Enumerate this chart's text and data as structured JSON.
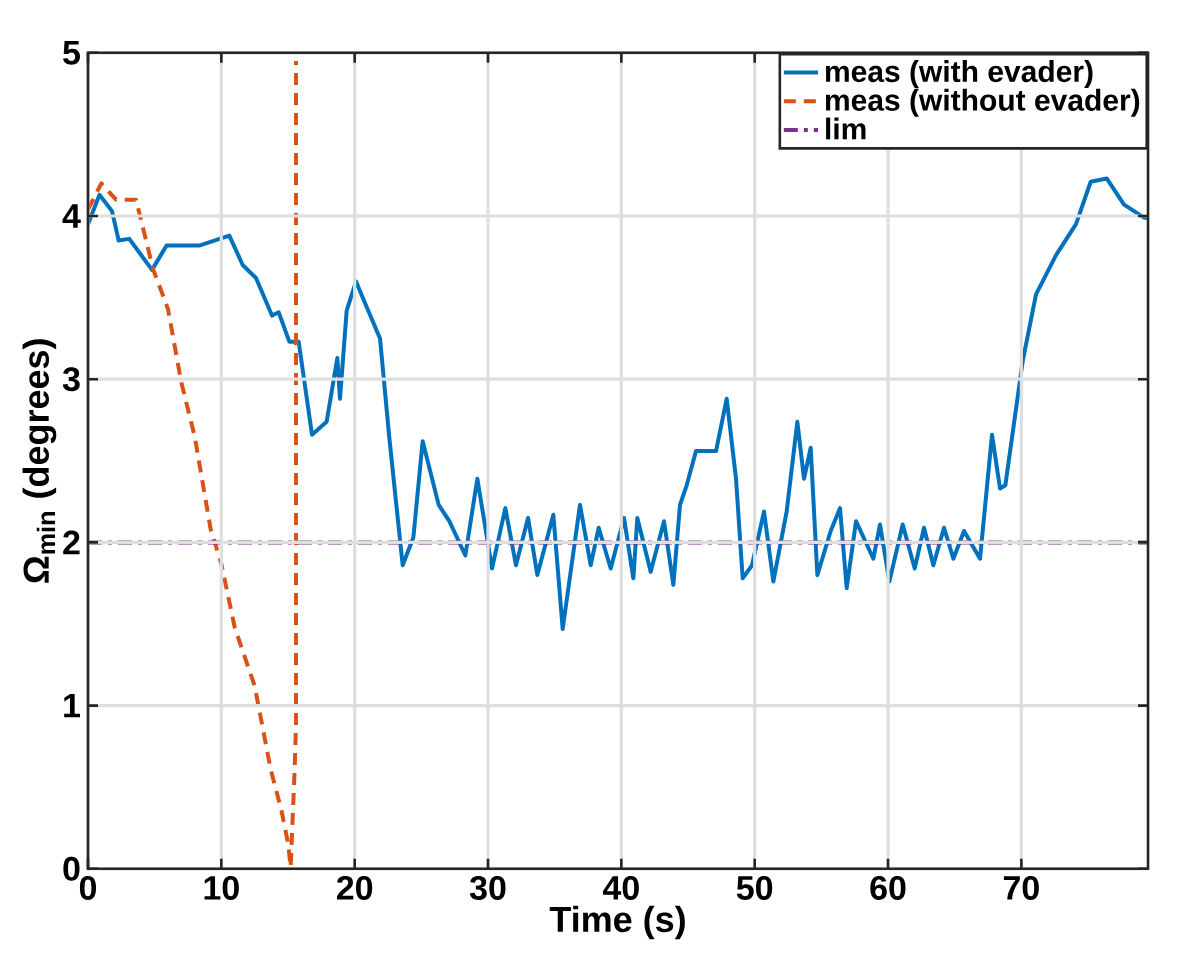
{
  "chart_data": {
    "type": "line",
    "xlabel": "Time (s)",
    "ylabel": "Ω$_{min}$ (degrees)",
    "xlim": [
      0,
      79.5
    ],
    "ylim": [
      0,
      5
    ],
    "xticks": [
      0,
      10,
      20,
      30,
      40,
      50,
      60,
      70
    ],
    "yticks": [
      0,
      1,
      2,
      3,
      4,
      5
    ],
    "grid": true,
    "legend": "top right",
    "series": [
      {
        "name": "meas (with evader)",
        "color": "#0072bd",
        "line_style": "solid",
        "x": [
          0,
          0.86,
          1.8,
          2.3,
          3.1,
          4.8,
          5.9,
          8.4,
          10.6,
          11.6,
          12.6,
          13.8,
          14.3,
          15.1,
          15.8,
          16.8,
          17.9,
          18.7,
          18.9,
          19.4,
          20.1,
          20.6,
          21.9,
          22.6,
          23.6,
          24.4,
          25.1,
          26.3,
          27.1,
          28.3,
          29.2,
          30.3,
          31.3,
          32.1,
          33.0,
          33.7,
          34.9,
          35.6,
          36.9,
          37.7,
          38.3,
          39.2,
          40.2,
          40.9,
          41.2,
          42.2,
          43.2,
          43.9,
          44.4,
          44.9,
          45.6,
          47.1,
          47.9,
          48.6,
          49.1,
          49.8,
          50.7,
          51.4,
          52.4,
          53.2,
          53.7,
          54.2,
          54.7,
          55.7,
          56.4,
          56.9,
          57.6,
          58.9,
          59.4,
          60.1,
          61.1,
          62.0,
          62.7,
          63.4,
          64.2,
          64.9,
          65.7,
          66.9,
          67.8,
          68.4,
          68.8,
          70.1,
          71.1,
          72.6,
          74.1,
          75.2,
          76.4,
          77.7,
          79.2,
          79.5
        ],
        "values": [
          3.95,
          4.13,
          4.03,
          3.85,
          3.86,
          3.67,
          3.82,
          3.82,
          3.88,
          3.7,
          3.62,
          3.39,
          3.41,
          3.23,
          3.23,
          2.66,
          2.74,
          3.13,
          2.88,
          3.42,
          3.6,
          3.5,
          3.25,
          2.64,
          1.86,
          2.03,
          2.62,
          2.23,
          2.13,
          1.92,
          2.39,
          1.84,
          2.21,
          1.86,
          2.15,
          1.8,
          2.17,
          1.47,
          2.23,
          1.86,
          2.09,
          1.84,
          2.15,
          1.78,
          2.15,
          1.82,
          2.13,
          1.74,
          2.23,
          2.35,
          2.56,
          2.56,
          2.88,
          2.39,
          1.78,
          1.86,
          2.19,
          1.76,
          2.19,
          2.74,
          2.39,
          2.58,
          1.8,
          2.07,
          2.21,
          1.72,
          2.13,
          1.9,
          2.11,
          1.76,
          2.11,
          1.84,
          2.09,
          1.86,
          2.09,
          1.9,
          2.07,
          1.9,
          2.66,
          2.33,
          2.35,
          3.11,
          3.52,
          3.76,
          3.95,
          4.21,
          4.23,
          4.07,
          3.99,
          3.99
        ]
      },
      {
        "name": "meas (without evader)",
        "color": "#d95319",
        "line_style": "dashed",
        "x": [
          0,
          1.0,
          2.1,
          3.6,
          4.9,
          6.0,
          7.0,
          8.0,
          9.2,
          10.0,
          11.0,
          12.5,
          13.7,
          14.5,
          15.0,
          15.2,
          15.5,
          15.6,
          15.6
        ],
        "values": [
          4.04,
          4.2,
          4.1,
          4.1,
          3.67,
          3.43,
          2.98,
          2.65,
          2.08,
          1.87,
          1.48,
          1.12,
          0.61,
          0.36,
          0.16,
          0.01,
          0.61,
          0.89,
          4.95
        ]
      }
    ],
    "ref_lines": [
      {
        "axis": "y",
        "value": 2,
        "label": "lim",
        "color": "#7e2f8e"
      }
    ]
  }
}
